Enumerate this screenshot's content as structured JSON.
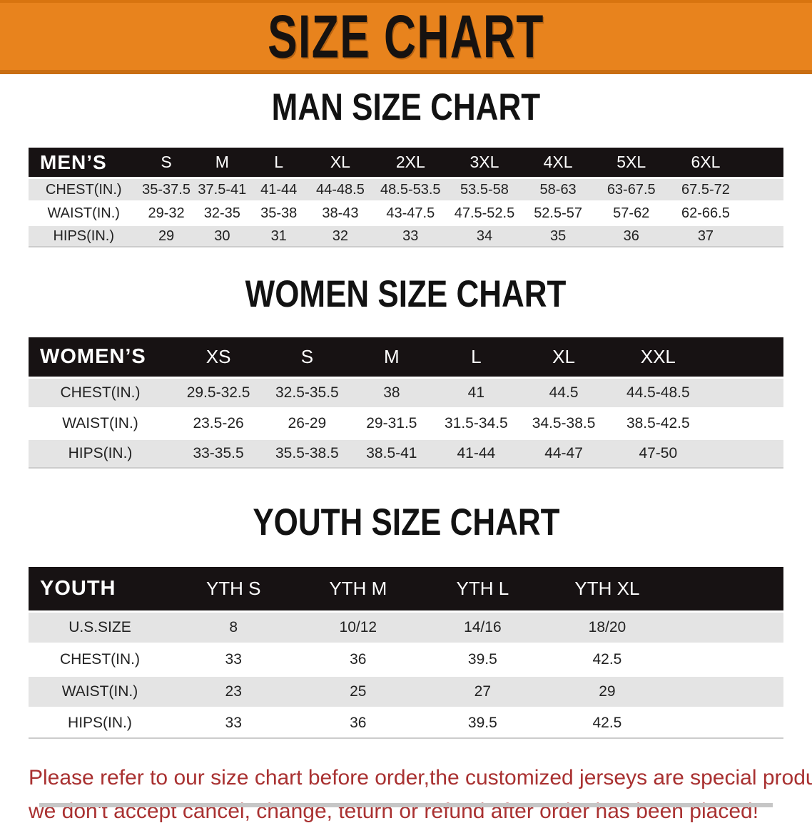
{
  "banner": {
    "title": "SIZE CHART"
  },
  "colors": {
    "banner_bg": "#E8831D",
    "banner_edge": "#C96E12",
    "table_header_bg": "#171213",
    "stripe_row_bg": "#E4E4E4",
    "disclaimer_text": "#A93131"
  },
  "sections": [
    {
      "heading": "MAN SIZE CHART",
      "group_label": "MEN’S",
      "columns": [
        "S",
        "M",
        "L",
        "XL",
        "2XL",
        "3XL",
        "4XL",
        "5XL",
        "6XL"
      ],
      "rows": [
        {
          "label": "CHEST(IN.)",
          "values": [
            "35-37.5",
            "37.5-41",
            "41-44",
            "44-48.5",
            "48.5-53.5",
            "53.5-58",
            "58-63",
            "63-67.5",
            "67.5-72"
          ]
        },
        {
          "label": "WAIST(IN.)",
          "values": [
            "29-32",
            "32-35",
            "35-38",
            "38-43",
            "43-47.5",
            "47.5-52.5",
            "52.5-57",
            "57-62",
            "62-66.5"
          ]
        },
        {
          "label": "HIPS(IN.)",
          "values": [
            "29",
            "30",
            "31",
            "32",
            "33",
            "34",
            "35",
            "36",
            "37"
          ]
        }
      ]
    },
    {
      "heading": "WOMEN SIZE CHART",
      "group_label": "WOMEN’S",
      "columns": [
        "XS",
        "S",
        "M",
        "L",
        "XL",
        "XXL"
      ],
      "rows": [
        {
          "label": "CHEST(IN.)",
          "values": [
            "29.5-32.5",
            "32.5-35.5",
            "38",
            "41",
            "44.5",
            "44.5-48.5"
          ]
        },
        {
          "label": "WAIST(IN.)",
          "values": [
            "23.5-26",
            "26-29",
            "29-31.5",
            "31.5-34.5",
            "34.5-38.5",
            "38.5-42.5"
          ]
        },
        {
          "label": "HIPS(IN.)",
          "values": [
            "33-35.5",
            "35.5-38.5",
            "38.5-41",
            "41-44",
            "44-47",
            "47-50"
          ]
        }
      ]
    },
    {
      "heading": "YOUTH SIZE CHART",
      "group_label": "YOUTH",
      "columns": [
        "YTH S",
        "YTH M",
        "YTH L",
        "YTH XL"
      ],
      "rows": [
        {
          "label": "U.S.SIZE",
          "values": [
            "8",
            "10/12",
            "14/16",
            "18/20"
          ]
        },
        {
          "label": "CHEST(IN.)",
          "values": [
            "33",
            "36",
            "39.5",
            "42.5"
          ]
        },
        {
          "label": "WAIST(IN.)",
          "values": [
            "23",
            "25",
            "27",
            "29"
          ]
        },
        {
          "label": "HIPS(IN.)",
          "values": [
            "33",
            "36",
            "39.5",
            "42.5"
          ]
        }
      ]
    }
  ],
  "disclaimer": {
    "line1": "Please refer to our size chart before order,the customized jerseys are special products,",
    "line2": "we don't accept cancel, change, teturn or refund after order has been placed!"
  }
}
